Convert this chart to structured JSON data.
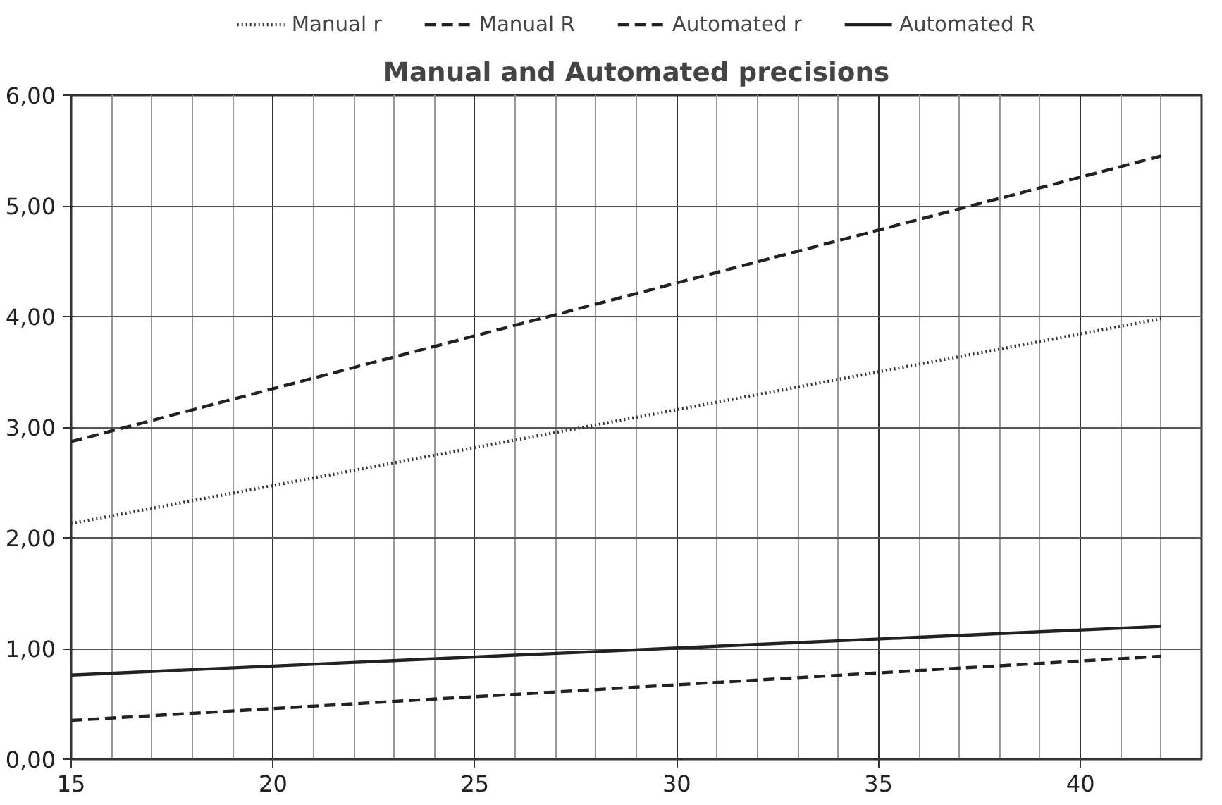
{
  "chart_data": {
    "type": "line",
    "title": "Manual and Automated precisions",
    "x": [
      15,
      42
    ],
    "series": [
      {
        "name": "Manual r",
        "color": "#333333",
        "line_style": "dotted",
        "values": [
          2.13,
          3.98
        ]
      },
      {
        "name": "Manual R",
        "color": "#222222",
        "line_style": "dashed",
        "values": [
          2.87,
          5.45
        ]
      },
      {
        "name": "Automated r",
        "color": "#222222",
        "line_style": "dashed",
        "values": [
          0.35,
          0.93
        ]
      },
      {
        "name": "Automated R",
        "color": "#222222",
        "line_style": "solid",
        "values": [
          0.76,
          1.2
        ]
      }
    ],
    "xlim": [
      15,
      43
    ],
    "xticks": [
      15,
      20,
      25,
      30,
      35,
      40
    ],
    "ylim": [
      0,
      6
    ],
    "yticks": [
      {
        "value": 0,
        "label": "0,00"
      },
      {
        "value": 1,
        "label": "1,00"
      },
      {
        "value": 2,
        "label": "2,00"
      },
      {
        "value": 3,
        "label": "3,00"
      },
      {
        "value": 4,
        "label": "4,00"
      },
      {
        "value": 5,
        "label": "5,00"
      },
      {
        "value": 6,
        "label": "6,00"
      }
    ],
    "grid": true,
    "legend": "top",
    "marker": "none"
  }
}
